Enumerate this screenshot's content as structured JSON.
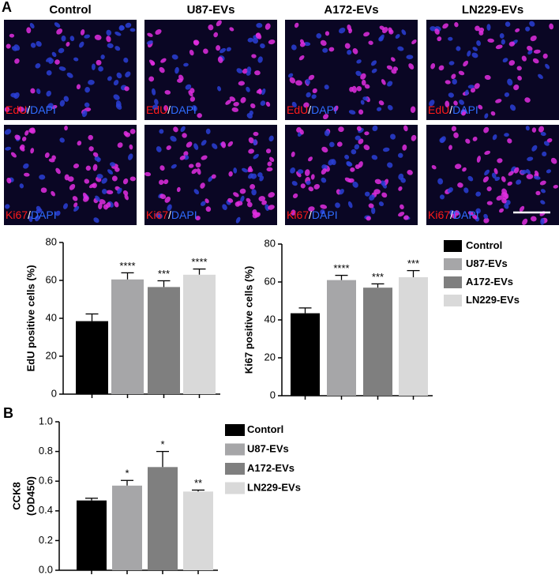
{
  "panels": [
    {
      "letter": "A"
    },
    {
      "letter": "B"
    }
  ],
  "images": {
    "columns": [
      "Control",
      "U87-EVs",
      "A172-EVs",
      "LN229-EVs"
    ],
    "rows": [
      {
        "marker": "EdU",
        "separator": "/",
        "stain": "DAPI"
      },
      {
        "marker": "Ki67",
        "separator": "/",
        "stain": "DAPI"
      }
    ]
  },
  "chart_data": [
    {
      "type": "bar",
      "ylabel": "EdU positive cells (%)",
      "ylim": [
        0,
        80
      ],
      "yticks": [
        0,
        20,
        40,
        60,
        80
      ],
      "values": [
        38.5,
        60.5,
        56.5,
        63
      ],
      "errors": [
        3.8,
        3.5,
        3.3,
        3
      ],
      "annotations": [
        "",
        "****",
        "***",
        "****"
      ],
      "colors": [
        "#000000",
        "#a6a6a8",
        "#7f7f7f",
        "#d9d9d9"
      ],
      "legend": [
        "Control",
        "U87-EVs",
        "A172-EVs",
        "LN229-EVs"
      ]
    },
    {
      "type": "bar",
      "ylabel": "Ki67 positive cells (%)",
      "ylim": [
        0,
        80
      ],
      "yticks": [
        0,
        20,
        40,
        60,
        80
      ],
      "values": [
        43.5,
        61,
        57,
        62.5
      ],
      "errors": [
        2.8,
        2.5,
        2,
        3.5
      ],
      "annotations": [
        "",
        "****",
        "***",
        "***"
      ],
      "colors": [
        "#000000",
        "#a6a6a8",
        "#7f7f7f",
        "#d9d9d9"
      ]
    },
    {
      "type": "bar",
      "ylabel": [
        "CCK8",
        "(OD450)"
      ],
      "ylim": [
        0,
        1.0
      ],
      "yticks": [
        {
          "value": 0,
          "label": "0.0"
        },
        0.2,
        0.4,
        0.6,
        0.8,
        {
          "value": 1.0,
          "label": "1.0"
        }
      ],
      "values": [
        0.47,
        0.57,
        0.695,
        0.53
      ],
      "errors": [
        0.015,
        0.035,
        0.105,
        0.01
      ],
      "annotations": [
        "",
        "*",
        "*",
        "**"
      ],
      "colors": [
        "#000000",
        "#a6a6a8",
        "#7f7f7f",
        "#d9d9d9"
      ],
      "legend": [
        "Contorl",
        "U87-EVs",
        "A172-EVs",
        "LN229-EVs"
      ]
    }
  ]
}
